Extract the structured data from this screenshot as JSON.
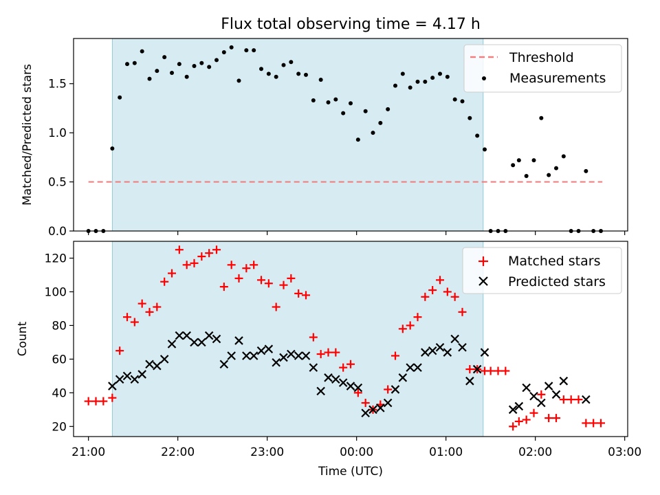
{
  "chart_data": [
    {
      "type": "scatter",
      "title": "Flux total observing time = 4.17 h",
      "ylabel": "Matched/Predicted stars",
      "xlabel": "",
      "xlim": [
        "20:50",
        "03:02"
      ],
      "ylim": [
        0,
        1.96
      ],
      "yticks": [
        0.0,
        0.5,
        1.0,
        1.5
      ],
      "ytick_labels": [
        "0.0",
        "0.5",
        "1.0",
        "1.5"
      ],
      "shaded_span": [
        "21:16",
        "01:25"
      ],
      "threshold": {
        "name": "Threshold",
        "y": 0.5,
        "x_range": [
          "21:00",
          "02:45"
        ],
        "color": "#f08080"
      },
      "legend": {
        "position": "top-right",
        "entries": [
          "Threshold",
          "Measurements"
        ]
      },
      "series": [
        {
          "name": "Measurements",
          "color": "#000000",
          "marker": "dot",
          "points": [
            [
              "21:00",
              0
            ],
            [
              "21:05",
              0
            ],
            [
              "21:10",
              0
            ],
            [
              "21:16",
              0.84
            ],
            [
              "21:21",
              1.36
            ],
            [
              "21:26",
              1.7
            ],
            [
              "21:31",
              1.71
            ],
            [
              "21:36",
              1.83
            ],
            [
              "21:41",
              1.55
            ],
            [
              "21:46",
              1.63
            ],
            [
              "21:51",
              1.77
            ],
            [
              "21:56",
              1.61
            ],
            [
              "22:01",
              1.7
            ],
            [
              "22:06",
              1.57
            ],
            [
              "22:11",
              1.68
            ],
            [
              "22:16",
              1.71
            ],
            [
              "22:21",
              1.67
            ],
            [
              "22:26",
              1.74
            ],
            [
              "22:31",
              1.82
            ],
            [
              "22:36",
              1.87
            ],
            [
              "22:41",
              1.53
            ],
            [
              "22:46",
              1.84
            ],
            [
              "22:51",
              1.84
            ],
            [
              "22:56",
              1.65
            ],
            [
              "23:01",
              1.6
            ],
            [
              "23:06",
              1.57
            ],
            [
              "23:11",
              1.69
            ],
            [
              "23:16",
              1.72
            ],
            [
              "23:21",
              1.6
            ],
            [
              "23:26",
              1.59
            ],
            [
              "23:31",
              1.33
            ],
            [
              "23:36",
              1.54
            ],
            [
              "23:41",
              1.31
            ],
            [
              "23:46",
              1.34
            ],
            [
              "23:51",
              1.2
            ],
            [
              "23:56",
              1.3
            ],
            [
              "00:01",
              0.93
            ],
            [
              "00:06",
              1.22
            ],
            [
              "00:11",
              1.0
            ],
            [
              "00:16",
              1.1
            ],
            [
              "00:21",
              1.24
            ],
            [
              "00:26",
              1.48
            ],
            [
              "00:31",
              1.6
            ],
            [
              "00:36",
              1.46
            ],
            [
              "00:41",
              1.52
            ],
            [
              "00:46",
              1.52
            ],
            [
              "00:51",
              1.56
            ],
            [
              "00:56",
              1.6
            ],
            [
              "01:01",
              1.57
            ],
            [
              "01:06",
              1.34
            ],
            [
              "01:11",
              1.32
            ],
            [
              "01:16",
              1.15
            ],
            [
              "01:21",
              0.97
            ],
            [
              "01:26",
              0.83
            ],
            [
              "01:30",
              0
            ],
            [
              "01:35",
              0
            ],
            [
              "01:40",
              0
            ],
            [
              "01:45",
              0.67
            ],
            [
              "01:49",
              0.72
            ],
            [
              "01:54",
              0.56
            ],
            [
              "01:59",
              0.72
            ],
            [
              "02:04",
              1.15
            ],
            [
              "02:09",
              0.57
            ],
            [
              "02:14",
              0.64
            ],
            [
              "02:19",
              0.76
            ],
            [
              "02:24",
              0
            ],
            [
              "02:29",
              0
            ],
            [
              "02:34",
              0.61
            ],
            [
              "02:39",
              0
            ],
            [
              "02:44",
              0
            ]
          ]
        }
      ]
    },
    {
      "type": "scatter",
      "title": "",
      "ylabel": "Count",
      "xlabel": "Time (UTC)",
      "xlim": [
        "20:50",
        "03:02"
      ],
      "ylim": [
        14,
        130
      ],
      "yticks": [
        20,
        40,
        60,
        80,
        100,
        120
      ],
      "ytick_labels": [
        "20",
        "40",
        "60",
        "80",
        "100",
        "120"
      ],
      "xticks": [
        "21:00",
        "22:00",
        "23:00",
        "00:00",
        "01:00",
        "02:00",
        "03:00"
      ],
      "shaded_span": [
        "21:16",
        "01:25"
      ],
      "legend": {
        "position": "top-right",
        "entries": [
          "Matched stars",
          "Predicted stars"
        ]
      },
      "series": [
        {
          "name": "Matched stars",
          "color": "#ff0000",
          "marker": "plus",
          "points": [
            [
              "21:00",
              35
            ],
            [
              "21:05",
              35
            ],
            [
              "21:10",
              35
            ],
            [
              "21:16",
              37
            ],
            [
              "21:21",
              65
            ],
            [
              "21:26",
              85
            ],
            [
              "21:31",
              82
            ],
            [
              "21:36",
              93
            ],
            [
              "21:41",
              88
            ],
            [
              "21:46",
              91
            ],
            [
              "21:51",
              106
            ],
            [
              "21:56",
              111
            ],
            [
              "22:01",
              125
            ],
            [
              "22:06",
              116
            ],
            [
              "22:11",
              117
            ],
            [
              "22:16",
              121
            ],
            [
              "22:21",
              123
            ],
            [
              "22:26",
              125
            ],
            [
              "22:31",
              103
            ],
            [
              "22:36",
              116
            ],
            [
              "22:41",
              108
            ],
            [
              "22:46",
              114
            ],
            [
              "22:51",
              116
            ],
            [
              "22:56",
              107
            ],
            [
              "23:01",
              105
            ],
            [
              "23:06",
              91
            ],
            [
              "23:11",
              104
            ],
            [
              "23:16",
              108
            ],
            [
              "23:21",
              99
            ],
            [
              "23:26",
              98
            ],
            [
              "23:31",
              73
            ],
            [
              "23:36",
              63
            ],
            [
              "23:41",
              64
            ],
            [
              "23:46",
              64
            ],
            [
              "23:51",
              55
            ],
            [
              "23:56",
              57
            ],
            [
              "00:01",
              40
            ],
            [
              "00:06",
              34
            ],
            [
              "00:11",
              30
            ],
            [
              "00:16",
              33
            ],
            [
              "00:21",
              42
            ],
            [
              "00:26",
              62
            ],
            [
              "00:31",
              78
            ],
            [
              "00:36",
              80
            ],
            [
              "00:41",
              85
            ],
            [
              "00:46",
              97
            ],
            [
              "00:51",
              101
            ],
            [
              "00:56",
              107
            ],
            [
              "01:01",
              100
            ],
            [
              "01:06",
              97
            ],
            [
              "01:11",
              88
            ],
            [
              "01:16",
              54
            ],
            [
              "01:21",
              54
            ],
            [
              "01:26",
              53
            ],
            [
              "01:30",
              53
            ],
            [
              "01:35",
              53
            ],
            [
              "01:40",
              53
            ],
            [
              "01:45",
              20
            ],
            [
              "01:49",
              23
            ],
            [
              "01:54",
              24
            ],
            [
              "01:59",
              28
            ],
            [
              "02:04",
              39
            ],
            [
              "02:09",
              25
            ],
            [
              "02:14",
              25
            ],
            [
              "02:19",
              36
            ],
            [
              "02:24",
              36
            ],
            [
              "02:29",
              36
            ],
            [
              "02:34",
              22
            ],
            [
              "02:39",
              22
            ],
            [
              "02:44",
              22
            ]
          ]
        },
        {
          "name": "Predicted stars",
          "color": "#000000",
          "marker": "x",
          "points": [
            [
              "21:16",
              44
            ],
            [
              "21:21",
              48
            ],
            [
              "21:26",
              50
            ],
            [
              "21:31",
              48
            ],
            [
              "21:36",
              51
            ],
            [
              "21:41",
              57
            ],
            [
              "21:46",
              56
            ],
            [
              "21:51",
              60
            ],
            [
              "21:56",
              69
            ],
            [
              "22:01",
              74
            ],
            [
              "22:06",
              74
            ],
            [
              "22:11",
              70
            ],
            [
              "22:16",
              70
            ],
            [
              "22:21",
              74
            ],
            [
              "22:26",
              72
            ],
            [
              "22:31",
              57
            ],
            [
              "22:36",
              62
            ],
            [
              "22:41",
              71
            ],
            [
              "22:46",
              62
            ],
            [
              "22:51",
              62
            ],
            [
              "22:56",
              65
            ],
            [
              "23:01",
              66
            ],
            [
              "23:06",
              58
            ],
            [
              "23:11",
              61
            ],
            [
              "23:16",
              63
            ],
            [
              "23:21",
              62
            ],
            [
              "23:26",
              62
            ],
            [
              "23:31",
              55
            ],
            [
              "23:36",
              41
            ],
            [
              "23:41",
              49
            ],
            [
              "23:46",
              48
            ],
            [
              "23:51",
              46
            ],
            [
              "23:56",
              44
            ],
            [
              "00:01",
              43
            ],
            [
              "00:06",
              28
            ],
            [
              "00:11",
              30
            ],
            [
              "00:16",
              31
            ],
            [
              "00:21",
              34
            ],
            [
              "00:26",
              42
            ],
            [
              "00:31",
              49
            ],
            [
              "00:36",
              55
            ],
            [
              "00:41",
              55
            ],
            [
              "00:46",
              64
            ],
            [
              "00:51",
              65
            ],
            [
              "00:56",
              67
            ],
            [
              "01:01",
              64
            ],
            [
              "01:06",
              72
            ],
            [
              "01:11",
              67
            ],
            [
              "01:16",
              47
            ],
            [
              "01:21",
              54
            ],
            [
              "01:26",
              64
            ],
            [
              "01:45",
              30
            ],
            [
              "01:49",
              32
            ],
            [
              "01:54",
              43
            ],
            [
              "01:59",
              38
            ],
            [
              "02:04",
              34
            ],
            [
              "02:09",
              44
            ],
            [
              "02:14",
              39
            ],
            [
              "02:19",
              47
            ],
            [
              "02:34",
              36
            ]
          ]
        }
      ]
    }
  ]
}
